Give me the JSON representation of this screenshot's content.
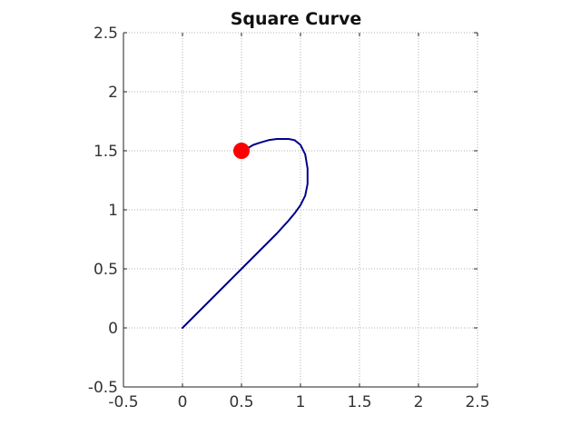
{
  "chart_data": {
    "type": "line",
    "title": "Square Curve",
    "xlabel": "",
    "ylabel": "",
    "xlim": [
      -0.5,
      2.5
    ],
    "ylim": [
      -0.5,
      2.5
    ],
    "xticks": [
      "-0.5",
      "0",
      "0.5",
      "1",
      "1.5",
      "2",
      "2.5"
    ],
    "yticks": [
      "-0.5",
      "0",
      "0.5",
      "1",
      "1.5",
      "2",
      "2.5"
    ],
    "grid": true,
    "series": [
      {
        "color": "#00008b",
        "x": [
          0,
          0.1,
          0.2,
          0.3,
          0.4,
          0.5,
          0.6,
          0.7,
          0.8,
          0.9,
          0.95,
          1.0,
          1.04,
          1.06,
          1.06,
          1.04,
          1.0,
          0.95,
          0.9,
          0.85,
          0.8,
          0.73,
          0.66,
          0.6,
          0.55,
          0.5
        ],
        "y": [
          0,
          0.1,
          0.2,
          0.3,
          0.4,
          0.5,
          0.6,
          0.7,
          0.8,
          0.91,
          0.97,
          1.04,
          1.12,
          1.22,
          1.35,
          1.47,
          1.55,
          1.59,
          1.6,
          1.6,
          1.6,
          1.59,
          1.57,
          1.55,
          1.52,
          1.5
        ]
      }
    ],
    "marker": {
      "x": 0.5,
      "y": 1.5,
      "color": "#ff0000"
    }
  }
}
